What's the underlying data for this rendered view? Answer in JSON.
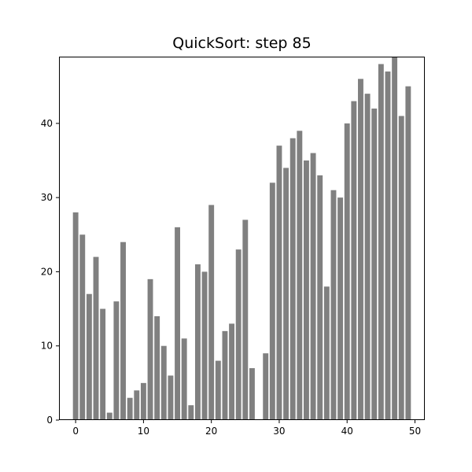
{
  "chart_data": {
    "type": "bar",
    "title": "QuickSort: step 85",
    "xlabel": "",
    "ylabel": "",
    "x": [
      0,
      1,
      2,
      3,
      4,
      5,
      6,
      7,
      8,
      9,
      10,
      11,
      12,
      13,
      14,
      15,
      16,
      17,
      18,
      19,
      20,
      21,
      22,
      23,
      24,
      25,
      26,
      27,
      28,
      29,
      30,
      31,
      32,
      33,
      34,
      35,
      36,
      37,
      38,
      39,
      40,
      41,
      42,
      43,
      44,
      45,
      46,
      47,
      48,
      49
    ],
    "values": [
      28,
      25,
      17,
      22,
      15,
      1,
      16,
      24,
      3,
      4,
      5,
      19,
      14,
      10,
      6,
      26,
      11,
      2,
      21,
      20,
      29,
      8,
      12,
      13,
      23,
      27,
      7,
      0,
      9,
      32,
      37,
      34,
      38,
      39,
      35,
      36,
      33,
      18,
      31,
      30,
      40,
      43,
      46,
      44,
      42,
      48,
      47,
      49,
      41,
      45
    ],
    "xlim": [
      -2.45,
      51.45
    ],
    "ylim": [
      0,
      49
    ],
    "xticks": [
      0,
      10,
      20,
      30,
      40,
      50
    ],
    "yticks": [
      0,
      10,
      20,
      30,
      40
    ],
    "bar_color": "#808080",
    "grid": false
  }
}
